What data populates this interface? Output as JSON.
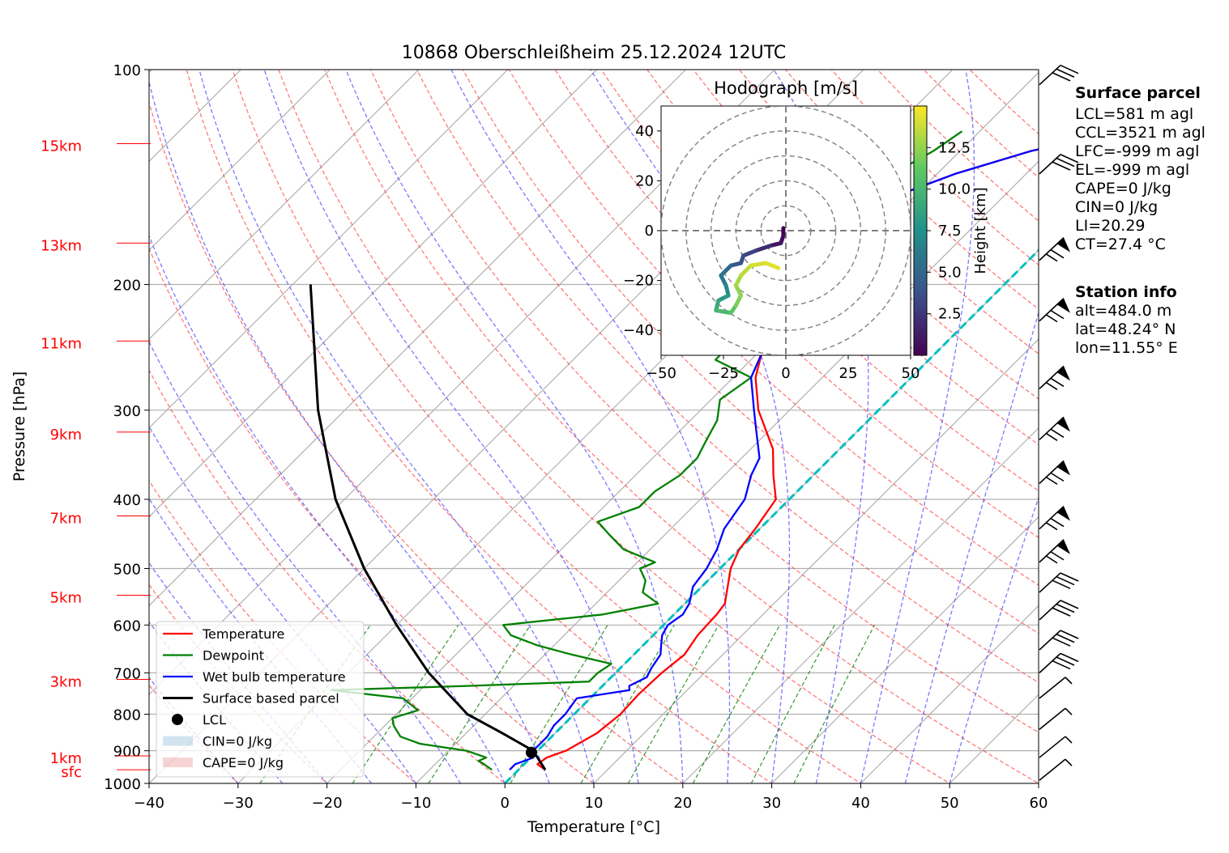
{
  "chart_data": {
    "type": "line",
    "title": "10868 Oberschleißheim 25.12.2024 12UTC",
    "xlabel": "Temperature [°C]",
    "ylabel": "Pressure [hPa]",
    "xlim": [
      -40,
      60
    ],
    "ylim": [
      1000,
      100
    ],
    "y_scale": "log",
    "grid": true,
    "x_ticks": [
      "−40",
      "−30",
      "−20",
      "−10",
      "0",
      "10",
      "20",
      "30",
      "40",
      "50",
      "60"
    ],
    "y_ticks": [
      {
        "p": 100,
        "label": "100"
      },
      {
        "p": 200,
        "label": "200"
      },
      {
        "p": 300,
        "label": "300"
      },
      {
        "p": 400,
        "label": "400"
      },
      {
        "p": 500,
        "label": "500"
      },
      {
        "p": 600,
        "label": "600"
      },
      {
        "p": 700,
        "label": "700"
      },
      {
        "p": 800,
        "label": "800"
      },
      {
        "p": 900,
        "label": "900"
      },
      {
        "p": 1000,
        "label": "1000"
      }
    ],
    "height_labels": [
      {
        "p": 957,
        "label": "sfc"
      },
      {
        "p": 915,
        "label": "1km"
      },
      {
        "p": 715,
        "label": "3km"
      },
      {
        "p": 545,
        "label": "5km"
      },
      {
        "p": 422,
        "label": "7km"
      },
      {
        "p": 322,
        "label": "9km"
      },
      {
        "p": 240,
        "label": "11km"
      },
      {
        "p": 175,
        "label": "13km"
      },
      {
        "p": 127,
        "label": "15km"
      }
    ],
    "legend_position": "lower-left",
    "legend": [
      {
        "label": "Temperature",
        "color": "#ff0000",
        "kind": "line"
      },
      {
        "label": "Dewpoint",
        "color": "#008000",
        "kind": "line"
      },
      {
        "label": "Wet bulb temperature",
        "color": "#0000ff",
        "kind": "line"
      },
      {
        "label": "Surface based parcel",
        "color": "#000000",
        "kind": "line"
      },
      {
        "label": "LCL",
        "color": "#000000",
        "kind": "dot"
      },
      {
        "label": "CIN=0 J/kg",
        "color": "#1f77b4",
        "kind": "patch"
      },
      {
        "label": "CAPE=0 J/kg",
        "color": "#d62728",
        "kind": "patch"
      }
    ],
    "series": [
      {
        "name": "Temperature",
        "color": "#ff0000",
        "points": [
          [
            957,
            3
          ],
          [
            940,
            1.5
          ],
          [
            920,
            1.8
          ],
          [
            900,
            3.2
          ],
          [
            850,
            4.7
          ],
          [
            800,
            5.2
          ],
          [
            750,
            5.0
          ],
          [
            700,
            5.2
          ],
          [
            660,
            5.7
          ],
          [
            620,
            5.0
          ],
          [
            580,
            4.8
          ],
          [
            560,
            4.5
          ],
          [
            500,
            1.2
          ],
          [
            470,
            0.0
          ],
          [
            440,
            -0.5
          ],
          [
            400,
            -1.5
          ],
          [
            370,
            -4.5
          ],
          [
            340,
            -7.5
          ],
          [
            300,
            -13.5
          ],
          [
            270,
            -17.5
          ],
          [
            250,
            -19.5
          ],
          [
            220,
            -22.5
          ],
          [
            200,
            -25
          ],
          [
            185,
            -27.5
          ],
          [
            170,
            -28
          ],
          [
            160,
            -26
          ],
          [
            150,
            -22
          ],
          [
            140,
            -18
          ],
          [
            130,
            -12
          ],
          [
            125,
            -7
          ],
          [
            120,
            -3
          ],
          [
            115,
            -2
          ],
          [
            110,
            -1.5
          ],
          [
            105,
            -1
          ]
        ]
      },
      {
        "name": "Dewpoint",
        "color": "#008000",
        "points": [
          [
            957,
            -3
          ],
          [
            940,
            -4.5
          ],
          [
            930,
            -5.5
          ],
          [
            920,
            -5
          ],
          [
            900,
            -8
          ],
          [
            880,
            -14
          ],
          [
            860,
            -17
          ],
          [
            830,
            -19
          ],
          [
            810,
            -20
          ],
          [
            790,
            -18
          ],
          [
            760,
            -21
          ],
          [
            740,
            -30
          ],
          [
            730,
            -15
          ],
          [
            720,
            -2
          ],
          [
            700,
            -2
          ],
          [
            680,
            -1.5
          ],
          [
            660,
            -7
          ],
          [
            640,
            -12
          ],
          [
            620,
            -16
          ],
          [
            600,
            -18
          ],
          [
            580,
            -8
          ],
          [
            560,
            -3
          ],
          [
            540,
            -6
          ],
          [
            520,
            -7
          ],
          [
            500,
            -9
          ],
          [
            490,
            -8
          ],
          [
            470,
            -13
          ],
          [
            450,
            -16
          ],
          [
            430,
            -19
          ],
          [
            410,
            -16
          ],
          [
            390,
            -16
          ],
          [
            370,
            -15
          ],
          [
            350,
            -15
          ],
          [
            330,
            -16
          ],
          [
            310,
            -17
          ],
          [
            290,
            -19
          ],
          [
            270,
            -18
          ],
          [
            255,
            -24
          ],
          [
            240,
            -24
          ],
          [
            225,
            -22.5
          ],
          [
            210,
            -23
          ],
          [
            195,
            -24
          ],
          [
            180,
            -25
          ],
          [
            175,
            -22.5
          ],
          [
            170,
            -30
          ],
          [
            160,
            -28
          ],
          [
            150,
            -26
          ],
          [
            140,
            -25
          ],
          [
            130,
            -23
          ],
          [
            122,
            -22
          ]
        ]
      },
      {
        "name": "Wet bulb temperature",
        "color": "#0000ff",
        "points": [
          [
            957,
            -1
          ],
          [
            940,
            -1
          ],
          [
            920,
            0.3
          ],
          [
            900,
            -0.5
          ],
          [
            860,
            -0.5
          ],
          [
            830,
            -1
          ],
          [
            800,
            -1
          ],
          [
            760,
            -1.5
          ],
          [
            740,
            3.5
          ],
          [
            730,
            3
          ],
          [
            710,
            4
          ],
          [
            690,
            3.5
          ],
          [
            660,
            3
          ],
          [
            640,
            2
          ],
          [
            620,
            1
          ],
          [
            600,
            0.5
          ],
          [
            580,
            1
          ],
          [
            560,
            0.5
          ],
          [
            530,
            -1
          ],
          [
            500,
            -1.5
          ],
          [
            470,
            -2.5
          ],
          [
            440,
            -4
          ],
          [
            400,
            -5
          ],
          [
            370,
            -7
          ],
          [
            350,
            -8
          ],
          [
            320,
            -11.5
          ],
          [
            300,
            -14
          ],
          [
            270,
            -18
          ],
          [
            250,
            -19.5
          ],
          [
            220,
            -22.5
          ],
          [
            200,
            -25
          ],
          [
            185,
            -27.5
          ],
          [
            170,
            -28
          ],
          [
            160,
            -26
          ],
          [
            150,
            -22
          ],
          [
            140,
            -18
          ],
          [
            130,
            -12
          ],
          [
            125,
            -7
          ],
          [
            120,
            -3
          ],
          [
            115,
            -2
          ],
          [
            110,
            -1.5
          ],
          [
            105,
            -1
          ]
        ]
      },
      {
        "name": "Surface based parcel",
        "color": "#000000",
        "points": [
          [
            957,
            3
          ],
          [
            900,
            -0.5
          ],
          [
            850,
            -6
          ],
          [
            800,
            -12
          ],
          [
            700,
            -21
          ],
          [
            600,
            -30
          ],
          [
            500,
            -40
          ],
          [
            400,
            -51
          ],
          [
            300,
            -63
          ],
          [
            200,
            -78
          ]
        ]
      }
    ],
    "lcl": {
      "p": 905,
      "t": -0.5
    },
    "cape_patch": [
      {
        "p": 1000,
        "t": 50
      },
      {
        "p": 1000,
        "t": 40
      },
      {
        "p": 1000,
        "t": 30
      },
      {
        "p": 1000,
        "t": 20
      }
    ],
    "wind_barbs": [
      {
        "p": 105,
        "type": "flags"
      },
      {
        "p": 140,
        "type": "flags"
      },
      {
        "p": 185,
        "type": "pennant"
      },
      {
        "p": 225,
        "type": "pennant"
      },
      {
        "p": 280,
        "type": "pennant"
      },
      {
        "p": 330,
        "type": "pennant"
      },
      {
        "p": 380,
        "type": "pennant"
      },
      {
        "p": 440,
        "type": "pennant"
      },
      {
        "p": 490,
        "type": "pennant"
      },
      {
        "p": 540,
        "type": "flags"
      },
      {
        "p": 590,
        "type": "flags"
      },
      {
        "p": 650,
        "type": "flags"
      },
      {
        "p": 700,
        "type": "flags"
      },
      {
        "p": 760,
        "type": "short"
      },
      {
        "p": 840,
        "type": "short"
      },
      {
        "p": 920,
        "type": "short"
      },
      {
        "p": 990,
        "type": "short"
      }
    ],
    "hodograph": {
      "title": "Hodograph [m/s]",
      "xlim": [
        -50,
        50
      ],
      "ylim": [
        -50,
        50
      ],
      "x_ticks": [
        "−50",
        "−25",
        "0",
        "25",
        "50"
      ],
      "y_ticks": [
        "40",
        "20",
        "0",
        "−20",
        "−40"
      ],
      "rings": [
        10,
        20,
        30,
        40,
        50
      ],
      "colorbar_label": "Height [km]",
      "colorbar_ticks": [
        "2.5",
        "5.0",
        "7.5",
        "10.0",
        "12.5"
      ],
      "colorbar_range": [
        0,
        15
      ],
      "points": [
        [
          -1,
          1,
          0
        ],
        [
          -1,
          -2,
          0.5
        ],
        [
          -2,
          -5,
          1
        ],
        [
          -6,
          -6,
          2
        ],
        [
          -12,
          -8,
          3
        ],
        [
          -17,
          -10,
          3.5
        ],
        [
          -18,
          -13,
          4
        ],
        [
          -22,
          -14,
          5
        ],
        [
          -24,
          -16,
          5.5
        ],
        [
          -26,
          -18,
          6
        ],
        [
          -24,
          -22,
          7
        ],
        [
          -23,
          -26,
          8
        ],
        [
          -27,
          -28,
          9
        ],
        [
          -28,
          -32,
          10
        ],
        [
          -22,
          -33,
          11
        ],
        [
          -20,
          -30,
          12
        ],
        [
          -18,
          -26,
          12.5
        ],
        [
          -20,
          -22,
          13
        ],
        [
          -18,
          -18,
          13.5
        ],
        [
          -14,
          -14,
          14
        ],
        [
          -8,
          -13,
          14.3
        ],
        [
          -3,
          -15,
          14.6
        ]
      ]
    },
    "surface_parcel": {
      "heading": "Surface parcel",
      "lines": [
        "LCL=581 m agl",
        "CCL=3521 m agl",
        "LFC=-999 m agl",
        "EL=-999 m agl",
        "CAPE=0 J/kg",
        "CIN=0 J/kg",
        "LI=20.29",
        "CT=27.4 °C"
      ]
    },
    "station_info": {
      "heading": "Station info",
      "lines": [
        "alt=484.0 m",
        "lat=48.24° N",
        "lon=11.55° E"
      ]
    }
  }
}
